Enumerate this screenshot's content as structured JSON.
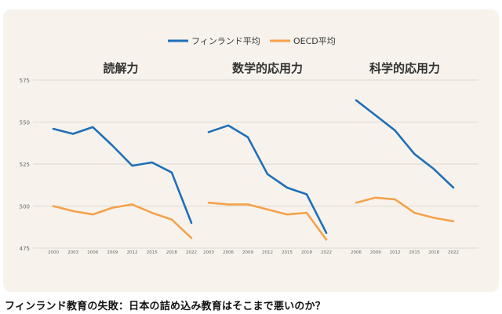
{
  "caption": "フィンランド教育の失敗：日本の詰め込み教育はそこまで悪いのか？",
  "colors": {
    "finland": "#1f6fb8",
    "oecd": "#f5a24b",
    "grid": "#ded8cf",
    "background": "#f7f3ec"
  },
  "chart_data": {
    "type": "line",
    "legend": [
      "フィンランド平均",
      "OECD平均"
    ],
    "legend_position": "top-center",
    "grid": true,
    "ylim": [
      475,
      575
    ],
    "yticks": [
      "575",
      "550",
      "525",
      "500",
      "475"
    ],
    "panels": [
      {
        "title": "読解力",
        "x": [
          "2000",
          "2003",
          "2006",
          "2009",
          "2012",
          "2015",
          "2018",
          "2022"
        ],
        "series": [
          {
            "name": "フィンランド平均",
            "values": [
              546,
              543,
              547,
              536,
              524,
              526,
              520,
              490
            ]
          },
          {
            "name": "OECD平均",
            "values": [
              500,
              497,
              495,
              499,
              501,
              496,
              492,
              481
            ]
          }
        ]
      },
      {
        "title": "数学的応用力",
        "x": [
          "2003",
          "2006",
          "2009",
          "2012",
          "2015",
          "2018",
          "2022"
        ],
        "series": [
          {
            "name": "フィンランド平均",
            "values": [
              544,
              548,
              541,
              519,
              511,
              507,
              484
            ]
          },
          {
            "name": "OECD平均",
            "values": [
              502,
              501,
              501,
              498,
              495,
              496,
              480
            ]
          }
        ]
      },
      {
        "title": "科学的応用力",
        "x": [
          "2006",
          "2009",
          "2012",
          "2015",
          "2018",
          "2022"
        ],
        "series": [
          {
            "name": "フィンランド平均",
            "values": [
              563,
              554,
              545,
              531,
              522,
              511
            ]
          },
          {
            "name": "OECD平均",
            "values": [
              502,
              505,
              504,
              496,
              493,
              491
            ]
          }
        ]
      }
    ]
  }
}
